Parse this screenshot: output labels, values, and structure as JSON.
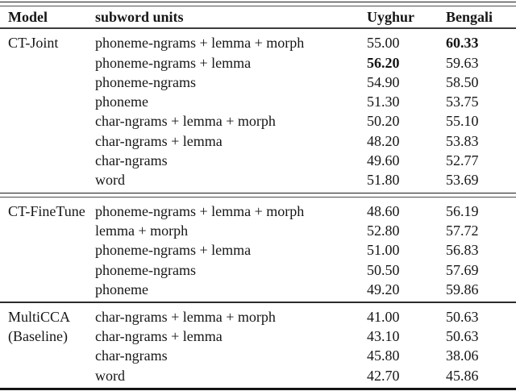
{
  "table": {
    "headers": [
      {
        "label": "Model"
      },
      {
        "label": "subword units"
      },
      {
        "label": "Uyghur"
      },
      {
        "label": "Bengali"
      }
    ],
    "sections": [
      {
        "model_lines": [
          "CT-Joint"
        ],
        "rule_after": "double",
        "rows": [
          {
            "subword": "phoneme-ngrams + lemma + morph",
            "uyghur": "55.00",
            "bengali": "60.33",
            "uyghur_bold": false,
            "bengali_bold": true
          },
          {
            "subword": "phoneme-ngrams + lemma",
            "uyghur": "56.20",
            "bengali": "59.63",
            "uyghur_bold": true,
            "bengali_bold": false
          },
          {
            "subword": "phoneme-ngrams",
            "uyghur": "54.90",
            "bengali": "58.50",
            "uyghur_bold": false,
            "bengali_bold": false
          },
          {
            "subword": "phoneme",
            "uyghur": "51.30",
            "bengali": "53.75",
            "uyghur_bold": false,
            "bengali_bold": false
          },
          {
            "subword": "char-ngrams + lemma + morph",
            "uyghur": "50.20",
            "bengali": "55.10",
            "uyghur_bold": false,
            "bengali_bold": false
          },
          {
            "subword": "char-ngrams + lemma",
            "uyghur": "48.20",
            "bengali": "53.83",
            "uyghur_bold": false,
            "bengali_bold": false
          },
          {
            "subword": "char-ngrams",
            "uyghur": "49.60",
            "bengali": "52.77",
            "uyghur_bold": false,
            "bengali_bold": false
          },
          {
            "subword": "word",
            "uyghur": "51.80",
            "bengali": "53.69",
            "uyghur_bold": false,
            "bengali_bold": false
          }
        ]
      },
      {
        "model_lines": [
          "CT-FineTune"
        ],
        "rule_after": "single",
        "rows": [
          {
            "subword": "phoneme-ngrams + lemma + morph",
            "uyghur": "48.60",
            "bengali": "56.19",
            "uyghur_bold": false,
            "bengali_bold": false
          },
          {
            "subword": "lemma + morph",
            "uyghur": "52.80",
            "bengali": "57.72",
            "uyghur_bold": false,
            "bengali_bold": false
          },
          {
            "subword": "phoneme-ngrams + lemma",
            "uyghur": "51.00",
            "bengali": "56.83",
            "uyghur_bold": false,
            "bengali_bold": false
          },
          {
            "subword": "phoneme-ngrams",
            "uyghur": "50.50",
            "bengali": "57.69",
            "uyghur_bold": false,
            "bengali_bold": false
          },
          {
            "subword": "phoneme",
            "uyghur": "49.20",
            "bengali": "59.86",
            "uyghur_bold": false,
            "bengali_bold": false
          }
        ]
      },
      {
        "model_lines": [
          "MultiCCA",
          "(Baseline)"
        ],
        "rule_after": "bottom",
        "rows": [
          {
            "subword": "char-ngrams + lemma + morph",
            "uyghur": "41.00",
            "bengali": "50.63",
            "uyghur_bold": false,
            "bengali_bold": false
          },
          {
            "subword": "char-ngrams + lemma",
            "uyghur": "43.10",
            "bengali": "50.63",
            "uyghur_bold": false,
            "bengali_bold": false
          },
          {
            "subword": "char-ngrams",
            "uyghur": "45.80",
            "bengali": "38.06",
            "uyghur_bold": false,
            "bengali_bold": false
          },
          {
            "subword": "word",
            "uyghur": "42.70",
            "bengali": "45.86",
            "uyghur_bold": false,
            "bengali_bold": false
          }
        ]
      }
    ]
  }
}
